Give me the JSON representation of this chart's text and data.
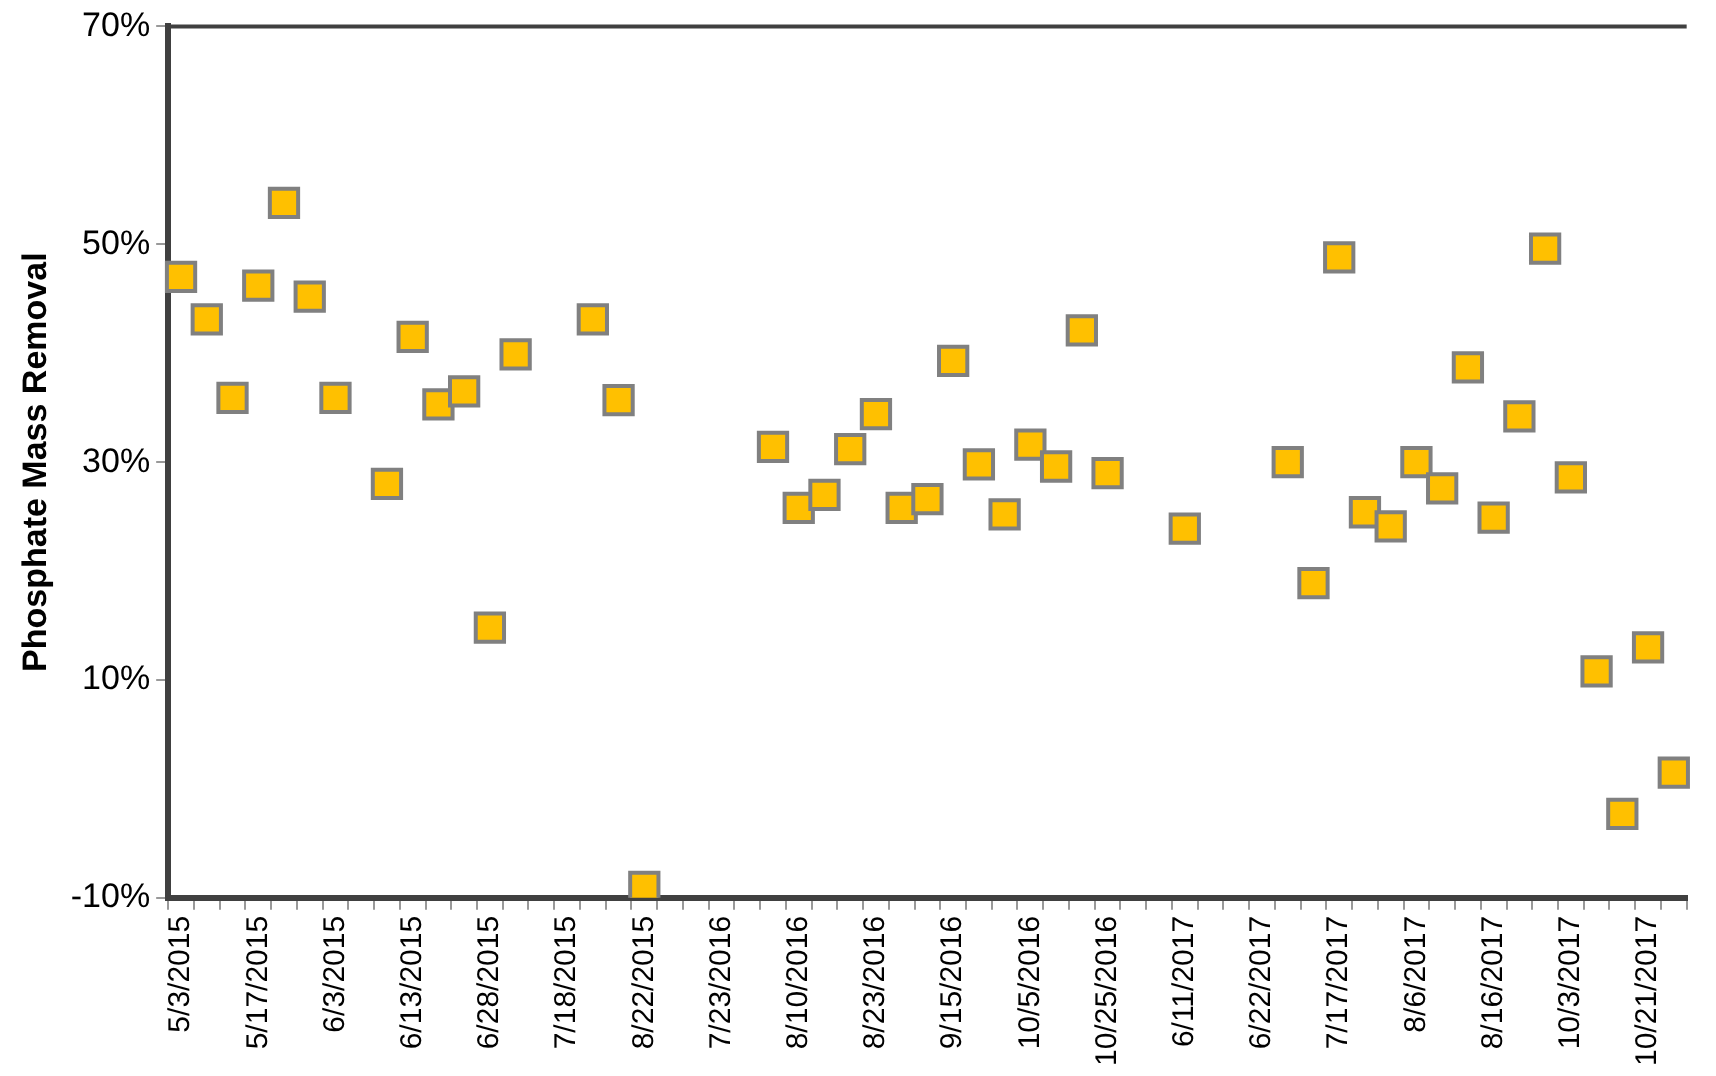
{
  "chart_data": {
    "type": "scatter",
    "ylabel": "Phosphate Mass Removal",
    "categories": [
      "5/3/2015",
      null,
      null,
      "5/17/2015",
      null,
      null,
      "6/3/2015",
      null,
      null,
      "6/13/2015",
      null,
      null,
      "6/28/2015",
      null,
      null,
      "7/18/2015",
      null,
      null,
      "8/22/2015",
      null,
      null,
      "7/23/2016",
      null,
      null,
      "8/10/2016",
      null,
      null,
      "8/23/2016",
      null,
      null,
      "9/15/2016",
      null,
      null,
      "10/5/2016",
      null,
      null,
      "10/25/2016",
      null,
      null,
      "6/11/2017",
      null,
      null,
      "6/22/2017",
      null,
      null,
      "7/17/2017",
      null,
      null,
      "8/6/2017",
      null,
      null,
      "8/16/2017",
      null,
      null,
      "10/3/2017",
      null,
      null,
      "10/21/2017",
      null
    ],
    "series": [
      {
        "color": "#ffc000",
        "values": [
          47.0,
          43.1,
          35.9,
          46.2,
          53.8,
          45.2,
          35.9,
          null,
          28.0,
          41.5,
          35.3,
          36.5,
          14.8,
          39.9,
          null,
          null,
          43.1,
          35.7,
          -9.0,
          null,
          null,
          null,
          null,
          31.4,
          25.8,
          27.0,
          31.2,
          34.4,
          25.8,
          26.6,
          39.3,
          29.8,
          25.2,
          31.6,
          29.6,
          42.1,
          29.0,
          null,
          null,
          23.9,
          null,
          null,
          null,
          30.0,
          18.9,
          48.8,
          25.4,
          24.1,
          30.0,
          27.6,
          38.7,
          24.9,
          34.2,
          49.6,
          28.6,
          10.8,
          -2.3,
          13.0,
          1.5
        ]
      }
    ],
    "ylim": [
      -10,
      70
    ],
    "yticks": [
      {
        "value": -10,
        "label": "-10%"
      },
      {
        "value": 10,
        "label": "10%"
      },
      {
        "value": 30,
        "label": "30%"
      },
      {
        "value": 50,
        "label": "50%"
      },
      {
        "value": 70,
        "label": "70%"
      }
    ],
    "grid": false,
    "legend": false,
    "marker": "square"
  }
}
